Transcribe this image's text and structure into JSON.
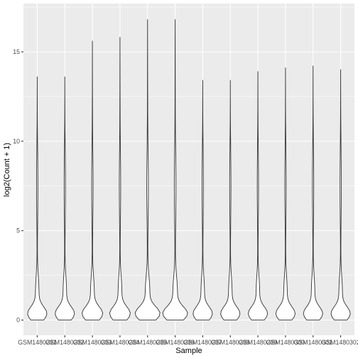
{
  "chart_data": {
    "type": "violin",
    "xlabel": "Sample",
    "ylabel": "log2(Count + 1)",
    "ylim": [
      -0.85,
      17.7
    ],
    "yticks": [
      0,
      5,
      10,
      15
    ],
    "ytick_labels": [
      "0",
      "5",
      "10",
      "15"
    ],
    "grid": true,
    "categories": [
      "GSM1480291",
      "GSM1480292",
      "GSM1480293",
      "GSM1480294",
      "GSM1480295",
      "GSM1480296",
      "GSM1480297",
      "GSM1480298",
      "GSM1480299",
      "GSM1480300",
      "GSM1480301",
      "GSM1480302"
    ],
    "max_values": [
      13.6,
      13.6,
      15.6,
      15.8,
      16.8,
      16.8,
      13.4,
      13.4,
      13.9,
      14.1,
      14.2,
      14.0
    ],
    "min_values": [
      0,
      0,
      0,
      0,
      0,
      0,
      0,
      0,
      0,
      0,
      0,
      0
    ],
    "relative_max_widths": [
      0.7,
      0.7,
      0.75,
      0.75,
      0.9,
      0.9,
      0.7,
      0.7,
      0.7,
      0.7,
      0.7,
      0.7
    ]
  }
}
